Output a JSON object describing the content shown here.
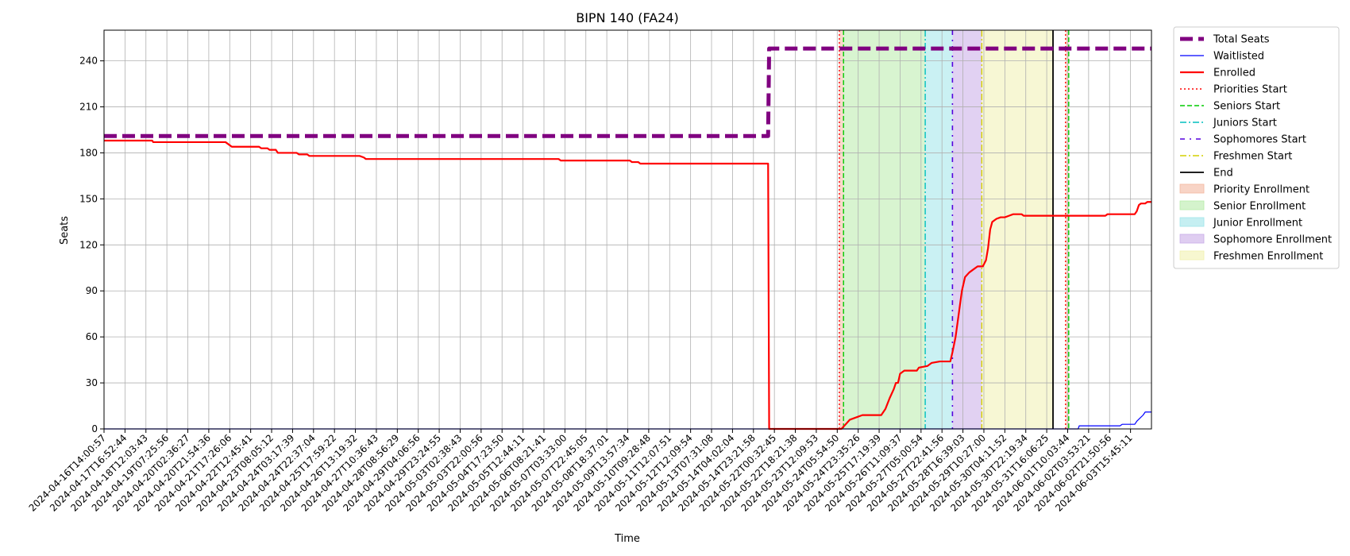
{
  "chart_data": {
    "type": "line",
    "title": "BIPN 140 (FA24)",
    "xlabel": "Time",
    "ylabel": "Seats",
    "ylim": [
      0,
      260
    ],
    "yticks": [
      0,
      30,
      60,
      90,
      120,
      150,
      180,
      210,
      240
    ],
    "grid": true,
    "legend_placement": "outside-right",
    "x_tick_labels": [
      "2024-04-16T14:00:57",
      "2024-04-17T16:52:44",
      "2024-04-18T12:03:43",
      "2024-04-19T07:25:56",
      "2024-04-20T02:36:27",
      "2024-04-20T21:54:36",
      "2024-04-21T17:26:06",
      "2024-04-22T12:45:41",
      "2024-04-23T08:05:12",
      "2024-04-24T03:17:39",
      "2024-04-24T22:37:04",
      "2024-04-25T17:59:22",
      "2024-04-26T13:19:32",
      "2024-04-27T10:36:43",
      "2024-04-28T08:56:29",
      "2024-04-29T04:06:56",
      "2024-04-29T23:24:55",
      "2024-05-03T02:38:43",
      "2024-05-03T22:00:56",
      "2024-05-04T17:23:50",
      "2024-05-05T12:44:11",
      "2024-05-06T08:21:41",
      "2024-05-07T03:33:00",
      "2024-05-07T22:45:05",
      "2024-05-08T18:37:01",
      "2024-05-09T13:57:34",
      "2024-05-10T09:28:48",
      "2024-05-11T12:07:51",
      "2024-05-12T12:09:54",
      "2024-05-13T07:31:08",
      "2024-05-14T04:02:04",
      "2024-05-14T23:21:58",
      "2024-05-22T00:32:45",
      "2024-05-22T18:21:38",
      "2024-05-23T12:09:53",
      "2024-05-24T05:54:50",
      "2024-05-24T23:35:26",
      "2024-05-25T17:19:39",
      "2024-05-26T11:09:37",
      "2024-05-27T05:00:54",
      "2024-05-27T22:41:56",
      "2024-05-28T16:39:03",
      "2024-05-29T10:27:00",
      "2024-05-30T04:11:52",
      "2024-05-30T22:19:34",
      "2024-05-31T16:06:25",
      "2024-06-01T10:03:44",
      "2024-06-02T03:53:21",
      "2024-06-02T21:50:56",
      "2024-06-03T15:45:11"
    ],
    "x_index_range": [
      0,
      50
    ],
    "series": [
      {
        "name": "Total Seats",
        "color": "#800080",
        "style": "dashed-thick",
        "points": [
          [
            0,
            191
          ],
          [
            31.7,
            191
          ],
          [
            31.75,
            248
          ],
          [
            50,
            248
          ]
        ]
      },
      {
        "name": "Waitlisted",
        "color": "#0000ff",
        "style": "solid-thin",
        "points": [
          [
            0,
            0
          ],
          [
            46.5,
            0
          ],
          [
            46.55,
            2
          ],
          [
            48.5,
            2
          ],
          [
            48.6,
            3
          ],
          [
            49.2,
            3
          ],
          [
            49.3,
            5
          ],
          [
            49.45,
            7
          ],
          [
            49.6,
            9
          ],
          [
            49.7,
            11
          ],
          [
            50,
            11
          ]
        ]
      },
      {
        "name": "Enrolled",
        "color": "#ff0000",
        "style": "solid-thick",
        "points": [
          [
            0,
            188
          ],
          [
            2.3,
            188
          ],
          [
            2.35,
            187
          ],
          [
            5.8,
            187
          ],
          [
            6.0,
            185
          ],
          [
            6.1,
            184
          ],
          [
            7.4,
            184
          ],
          [
            7.5,
            183
          ],
          [
            7.8,
            183
          ],
          [
            7.9,
            182
          ],
          [
            8.2,
            182
          ],
          [
            8.3,
            180
          ],
          [
            9.2,
            180
          ],
          [
            9.3,
            179
          ],
          [
            9.7,
            179
          ],
          [
            9.8,
            178
          ],
          [
            12.2,
            178
          ],
          [
            12.4,
            177
          ],
          [
            12.5,
            176
          ],
          [
            21.7,
            176
          ],
          [
            21.8,
            175
          ],
          [
            25.1,
            175
          ],
          [
            25.2,
            174
          ],
          [
            25.5,
            174
          ],
          [
            25.6,
            173
          ],
          [
            31.7,
            173
          ],
          [
            31.75,
            0
          ],
          [
            35.2,
            0
          ],
          [
            35.4,
            3
          ],
          [
            35.6,
            6
          ],
          [
            36.0,
            8
          ],
          [
            36.2,
            9
          ],
          [
            37.1,
            9
          ],
          [
            37.3,
            13
          ],
          [
            37.5,
            20
          ],
          [
            37.7,
            26
          ],
          [
            37.8,
            30
          ],
          [
            37.9,
            30
          ],
          [
            38.0,
            36
          ],
          [
            38.2,
            38
          ],
          [
            38.8,
            38
          ],
          [
            38.9,
            40
          ],
          [
            39.3,
            41
          ],
          [
            39.5,
            43
          ],
          [
            39.9,
            44
          ],
          [
            40.4,
            44
          ],
          [
            40.5,
            50
          ],
          [
            40.65,
            60
          ],
          [
            40.75,
            70
          ],
          [
            40.85,
            80
          ],
          [
            40.95,
            90
          ],
          [
            41.1,
            99
          ],
          [
            41.3,
            102
          ],
          [
            41.5,
            104
          ],
          [
            41.7,
            106
          ],
          [
            41.95,
            106
          ],
          [
            42.1,
            110
          ],
          [
            42.2,
            118
          ],
          [
            42.3,
            130
          ],
          [
            42.4,
            135
          ],
          [
            42.6,
            137
          ],
          [
            42.8,
            138
          ],
          [
            43.0,
            138
          ],
          [
            43.2,
            139
          ],
          [
            43.4,
            140
          ],
          [
            43.8,
            140
          ],
          [
            43.9,
            139
          ],
          [
            47.8,
            139
          ],
          [
            47.9,
            140
          ],
          [
            49.2,
            140
          ],
          [
            49.3,
            142
          ],
          [
            49.4,
            146
          ],
          [
            49.5,
            147
          ],
          [
            49.7,
            147
          ],
          [
            49.8,
            148
          ],
          [
            50,
            148
          ]
        ]
      }
    ],
    "vertical_lines": [
      {
        "name": "Priorities Start",
        "x": 35.1,
        "color": "#ff0000",
        "style": "dotted"
      },
      {
        "name": "Seniors Start",
        "x": 35.3,
        "color": "#00cc00",
        "style": "dashed"
      },
      {
        "name": "Juniors Start",
        "x": 39.2,
        "color": "#00bfbf",
        "style": "dashdot"
      },
      {
        "name": "Sophomores Start",
        "x": 40.5,
        "color": "#5500dd",
        "style": "dashdot-sparse"
      },
      {
        "name": "Freshmen Start",
        "x": 41.9,
        "color": "#d4d000",
        "style": "dashdot"
      },
      {
        "name": "End",
        "x": 45.3,
        "color": "#000000",
        "style": "solid"
      }
    ],
    "extra_lines": [
      {
        "x": 45.9,
        "color": "#ff0000",
        "style": "dotted"
      },
      {
        "x": 46.05,
        "color": "#00cc00",
        "style": "dashed"
      }
    ],
    "spans": [
      {
        "name": "Priority Enrollment",
        "x0": 35.1,
        "x1": 35.3,
        "color": "#f4b8a0"
      },
      {
        "name": "Senior Enrollment",
        "x0": 35.3,
        "x1": 39.2,
        "color": "#b8ebaa"
      },
      {
        "name": "Junior Enrollment",
        "x0": 39.2,
        "x1": 40.5,
        "color": "#9fe5ea"
      },
      {
        "name": "Sophomore Enrollment",
        "x0": 40.5,
        "x1": 41.9,
        "color": "#c9ace8"
      },
      {
        "name": "Freshmen Enrollment",
        "x0": 41.9,
        "x1": 45.3,
        "color": "#f1f1b0"
      },
      {
        "x0": 45.9,
        "x1": 46.05,
        "color": "#f4b8a0"
      }
    ],
    "legend": [
      {
        "label": "Total Seats",
        "kind": "line",
        "color": "#800080",
        "style": "dashed-thick"
      },
      {
        "label": "Waitlisted",
        "kind": "line",
        "color": "#0000ff",
        "style": "solid-thin"
      },
      {
        "label": "Enrolled",
        "kind": "line",
        "color": "#ff0000",
        "style": "solid-thick"
      },
      {
        "label": "Priorities Start",
        "kind": "line",
        "color": "#ff0000",
        "style": "dotted"
      },
      {
        "label": "Seniors Start",
        "kind": "line",
        "color": "#00cc00",
        "style": "dashed"
      },
      {
        "label": "Juniors Start",
        "kind": "line",
        "color": "#00bfbf",
        "style": "dashdot"
      },
      {
        "label": "Sophomores Start",
        "kind": "line",
        "color": "#5500dd",
        "style": "dashdot-sparse"
      },
      {
        "label": "Freshmen Start",
        "kind": "line",
        "color": "#d4d000",
        "style": "dashdot"
      },
      {
        "label": "End",
        "kind": "line",
        "color": "#000000",
        "style": "solid"
      },
      {
        "label": "Priority Enrollment",
        "kind": "patch",
        "color": "#f4b8a0"
      },
      {
        "label": "Senior Enrollment",
        "kind": "patch",
        "color": "#b8ebaa"
      },
      {
        "label": "Junior Enrollment",
        "kind": "patch",
        "color": "#9fe5ea"
      },
      {
        "label": "Sophomore Enrollment",
        "kind": "patch",
        "color": "#c9ace8"
      },
      {
        "label": "Freshmen Enrollment",
        "kind": "patch",
        "color": "#f1f1b0"
      }
    ]
  }
}
